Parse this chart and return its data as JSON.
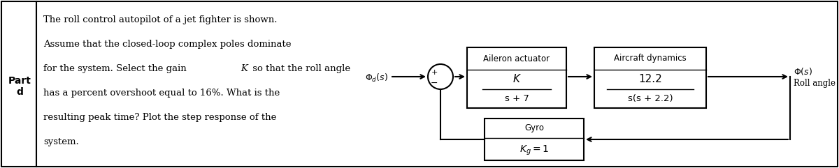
{
  "bg_color": "#ffffff",
  "border_color": "#000000",
  "text_color": "#000000",
  "left_text_lines": [
    "The roll control autopilot of a jet fighter is shown.",
    "Assume that the closed-loop complex poles dominate",
    "for the system. Select the gain K so that the roll angle",
    "has a percent overshoot equal to 16%. What is the",
    "resulting peak time? Plot the step response of the",
    "system."
  ],
  "part_label": "Part\nd",
  "block1_title": "Aileron actuator",
  "block1_num": "K",
  "block1_den": "s + 7",
  "block2_title": "Aircraft dynamics",
  "block2_num": "12.2",
  "block2_den": "s(s + 2.2)",
  "block3_title": "Gyro",
  "block3_kg": "$K_g = 1$",
  "input_label": "$\\Phi_d(s)$",
  "output_label_top": "$\\Phi(s)$",
  "output_label_bot": "Roll angle",
  "plus_sign": "+",
  "minus_sign": "−",
  "figsize": [
    12.0,
    2.41
  ],
  "dpi": 100,
  "fig_border_lw": 1.5,
  "block_lw": 1.5,
  "arrow_lw": 1.5,
  "circle_lw": 1.5
}
